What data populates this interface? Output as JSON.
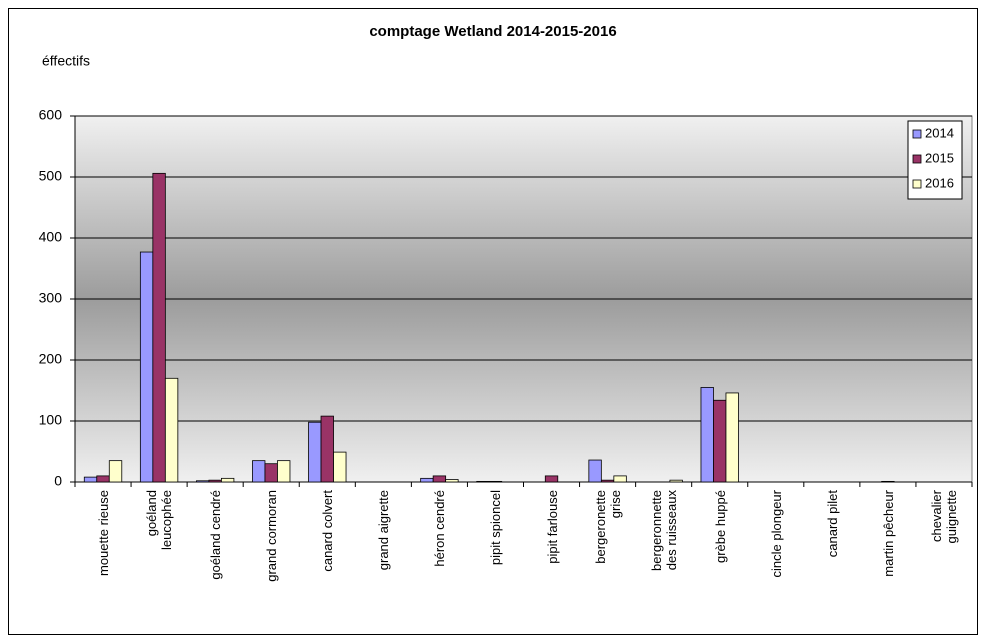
{
  "chart_data": {
    "type": "bar",
    "title": "comptage Wetland 2014-2015-2016",
    "y_label": "éffectifs",
    "categories": [
      "mouette rieuse",
      "goéland leucophée",
      "goéland cendré",
      "grand cormoran",
      "canard colvert",
      "grand aigrette",
      "héron cendré",
      "pipit spioncel",
      "pipit farlouse",
      "bergeronette grise",
      "bergeronnette des ruisseaux",
      "grèbe huppé",
      "cincle plongeur",
      "canard pilet",
      "martin pêcheur",
      "chevalier guignette"
    ],
    "series": [
      {
        "name": "2014",
        "color": "#9999ff",
        "values": [
          8,
          377,
          2,
          35,
          98,
          0,
          6,
          1,
          0,
          36,
          0,
          155,
          0,
          0,
          0,
          0
        ]
      },
      {
        "name": "2015",
        "color": "#993366",
        "values": [
          10,
          506,
          3,
          30,
          108,
          0,
          10,
          1,
          10,
          3,
          0,
          134,
          0,
          0,
          1,
          0
        ]
      },
      {
        "name": "2016",
        "color": "#ffffcc",
        "values": [
          35,
          170,
          6,
          35,
          49,
          0,
          4,
          0,
          0,
          10,
          3,
          146,
          0,
          0,
          0,
          0
        ]
      }
    ],
    "ylim": [
      0,
      600
    ],
    "yticks": [
      0,
      100,
      200,
      300,
      400,
      500,
      600
    ],
    "grid": true,
    "legend": "top-right"
  }
}
